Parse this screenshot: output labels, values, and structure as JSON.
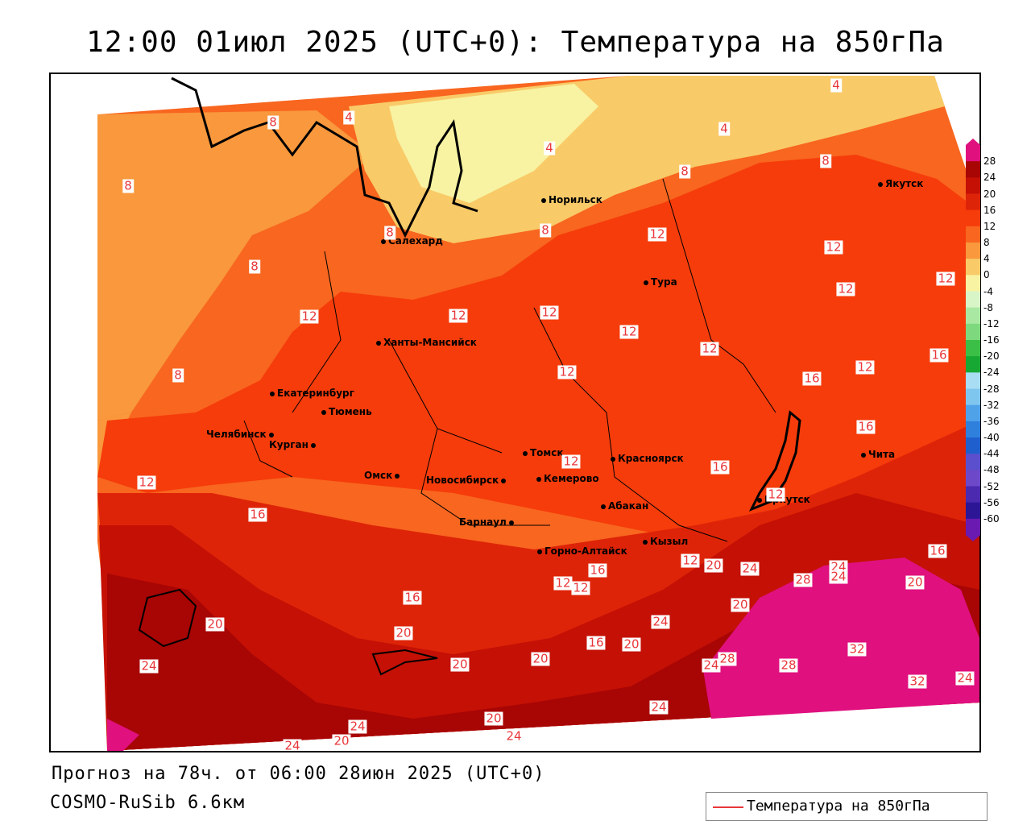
{
  "title": "12:00 01июл 2025 (UTC+0): Температура на 850гПа",
  "forecast_line": "Прогноз на 78ч. от 06:00 28июн 2025 (UTC+0)",
  "model_line": "COSMO-RuSib 6.6км",
  "legend": {
    "label": "Температура на 850гПа",
    "line_color": "#e8373a"
  },
  "colorbar": {
    "ticks": [
      "28",
      "24",
      "20",
      "16",
      "12",
      "8",
      "4",
      "0",
      "-4",
      "-8",
      "-12",
      "-16",
      "-20",
      "-24",
      "-28",
      "-32",
      "-36",
      "-40",
      "-44",
      "-48",
      "-52",
      "-56",
      "-60"
    ],
    "colors": [
      "#e0107e",
      "#a80505",
      "#c41005",
      "#de2408",
      "#f63c0b",
      "#f8661f",
      "#f9983c",
      "#f9ca68",
      "#f7f3a2",
      "#d8f5c8",
      "#a9e8a2",
      "#7ed87e",
      "#3cbf46",
      "#17a834",
      "#a8ddf3",
      "#7fc6ef",
      "#4fa2e8",
      "#2f80dd",
      "#1f5fcd",
      "#5b4fce",
      "#6d48c9",
      "#4b2ab0",
      "#2c1696",
      "#6a1ab0"
    ]
  },
  "cities": [
    {
      "name": "Норильск"
    },
    {
      "name": "Якутск"
    },
    {
      "name": "Салехард"
    },
    {
      "name": "Тура"
    },
    {
      "name": "Ханты-Мансийск"
    },
    {
      "name": "Екатеринбург"
    },
    {
      "name": "Тюмень"
    },
    {
      "name": "Челябинск"
    },
    {
      "name": "Курган"
    },
    {
      "name": "Омск"
    },
    {
      "name": "Новосибирск"
    },
    {
      "name": "Томск"
    },
    {
      "name": "Кемерово"
    },
    {
      "name": "Красноярск"
    },
    {
      "name": "Абакан"
    },
    {
      "name": "Барнаул"
    },
    {
      "name": "Горно-Алтайск"
    },
    {
      "name": "Кызыл"
    },
    {
      "name": "Иркутск"
    },
    {
      "name": "Чита"
    }
  ],
  "contour_labels": [
    "4",
    "4",
    "4",
    "4",
    "8",
    "8",
    "8",
    "8",
    "8",
    "8",
    "8",
    "8",
    "12",
    "12",
    "12",
    "12",
    "12",
    "12",
    "12",
    "12",
    "12",
    "12",
    "12",
    "12",
    "12",
    "12",
    "12",
    "12",
    "12",
    "16",
    "16",
    "16",
    "16",
    "16",
    "16",
    "16",
    "16",
    "16",
    "20",
    "20",
    "20",
    "20",
    "20",
    "20",
    "20",
    "20",
    "20",
    "20",
    "24",
    "24",
    "24",
    "24",
    "24",
    "24",
    "24",
    "24",
    "24",
    "24",
    "24",
    "28",
    "28",
    "28",
    "32",
    "32"
  ]
}
